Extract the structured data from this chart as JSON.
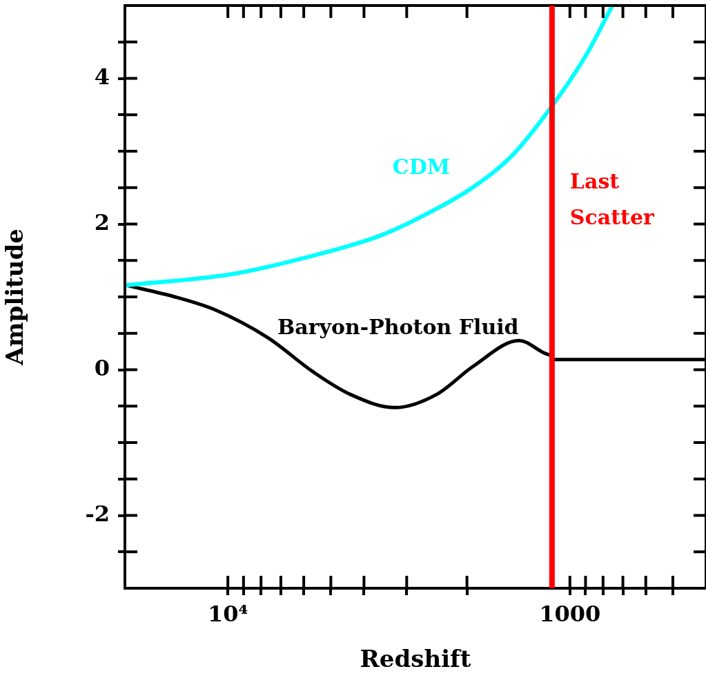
{
  "chart_data": {
    "type": "line",
    "xlabel": "Redshift",
    "ylabel": "Amplitude",
    "xlim": [
      20000,
      400
    ],
    "ylim": [
      -3,
      5
    ],
    "xticks": [
      {
        "value": 10000,
        "label": "10⁴"
      },
      {
        "value": 9000,
        "label": null
      },
      {
        "value": 8000,
        "label": null
      },
      {
        "value": 7000,
        "label": null
      },
      {
        "value": 6000,
        "label": null
      },
      {
        "value": 5000,
        "label": null
      },
      {
        "value": 4000,
        "label": null
      },
      {
        "value": 3000,
        "label": null
      },
      {
        "value": 2000,
        "label": null
      },
      {
        "value": 1000,
        "label": "1000"
      },
      {
        "value": 900,
        "label": null
      },
      {
        "value": 800,
        "label": null
      },
      {
        "value": 700,
        "label": null
      },
      {
        "value": 600,
        "label": null
      },
      {
        "value": 500,
        "label": null
      }
    ],
    "yticks": [
      {
        "value": -2.5,
        "label": null
      },
      {
        "value": -2,
        "label": "-2"
      },
      {
        "value": -1.5,
        "label": null
      },
      {
        "value": -1,
        "label": null
      },
      {
        "value": -0.5,
        "label": null
      },
      {
        "value": 0,
        "label": "0"
      },
      {
        "value": 0.5,
        "label": null
      },
      {
        "value": 1,
        "label": null
      },
      {
        "value": 1.5,
        "label": null
      },
      {
        "value": 2,
        "label": "2"
      },
      {
        "value": 2.5,
        "label": null
      },
      {
        "value": 3,
        "label": null
      },
      {
        "value": 3.5,
        "label": null
      },
      {
        "value": 4,
        "label": "4"
      },
      {
        "value": 4.5,
        "label": null
      }
    ],
    "log": "x",
    "grid": false,
    "legend": false,
    "marker": "none",
    "line_style": "solid",
    "series": [
      {
        "name": "CDM",
        "color": "#00ffff",
        "x": [
          19860,
          9810,
          5930,
          3590,
          2455,
          1914,
          1483,
          1128,
          899,
          753
        ],
        "values": [
          1.16,
          1.31,
          1.54,
          1.84,
          2.21,
          2.51,
          2.93,
          3.62,
          4.31,
          4.99
        ]
      },
      {
        "name": "Baryon-Photon Fluid",
        "color": "#000000",
        "x": [
          19860,
          14290,
          10870,
          7640,
          5630,
          4380,
          3240,
          2455,
          1914,
          1408,
          1128,
          1128,
          400
        ],
        "values": [
          1.16,
          1.0,
          0.82,
          0.44,
          -0.03,
          -0.34,
          -0.52,
          -0.34,
          0.05,
          0.4,
          0.2,
          0.14,
          0.14
        ]
      }
    ],
    "ref_lines": [
      {
        "axis": "x",
        "value": 1128,
        "label": "Last Scatter",
        "color": "#ff0000",
        "line_style": "solid"
      }
    ]
  }
}
